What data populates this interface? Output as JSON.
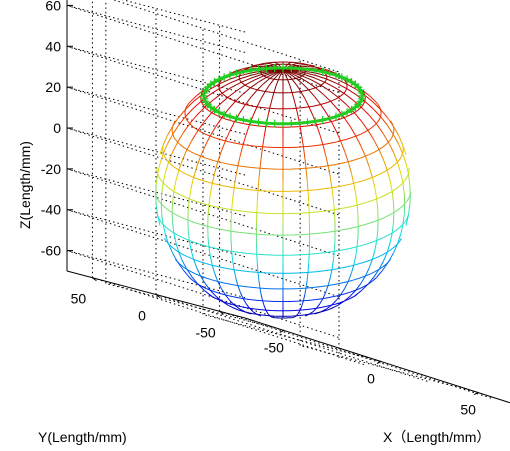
{
  "chart_data": {
    "type": "surface3d",
    "shape": "sphere",
    "title": "",
    "xlabel": "X（Length/mm）",
    "ylabel": "Y(Length/mm)",
    "zlabel": "Z(Length/mm)",
    "x_ticks": [
      "-50",
      "0",
      "50"
    ],
    "y_ticks": [
      "-50",
      "0",
      "50"
    ],
    "z_ticks": [
      "-60",
      "-40",
      "-20",
      "0",
      "20",
      "40",
      "60"
    ],
    "xlim": [
      -70,
      70
    ],
    "ylim": [
      -70,
      70
    ],
    "zlim": [
      -70,
      70
    ],
    "grid": true,
    "box": "open",
    "colormap": "jet",
    "sphere": {
      "center": [
        0,
        0,
        0
      ],
      "radius": 70,
      "latitude_lines": 18,
      "longitude_lines": 30
    },
    "annotation_ring": {
      "color": "#22cc22",
      "z": 55,
      "marker": "+"
    }
  }
}
